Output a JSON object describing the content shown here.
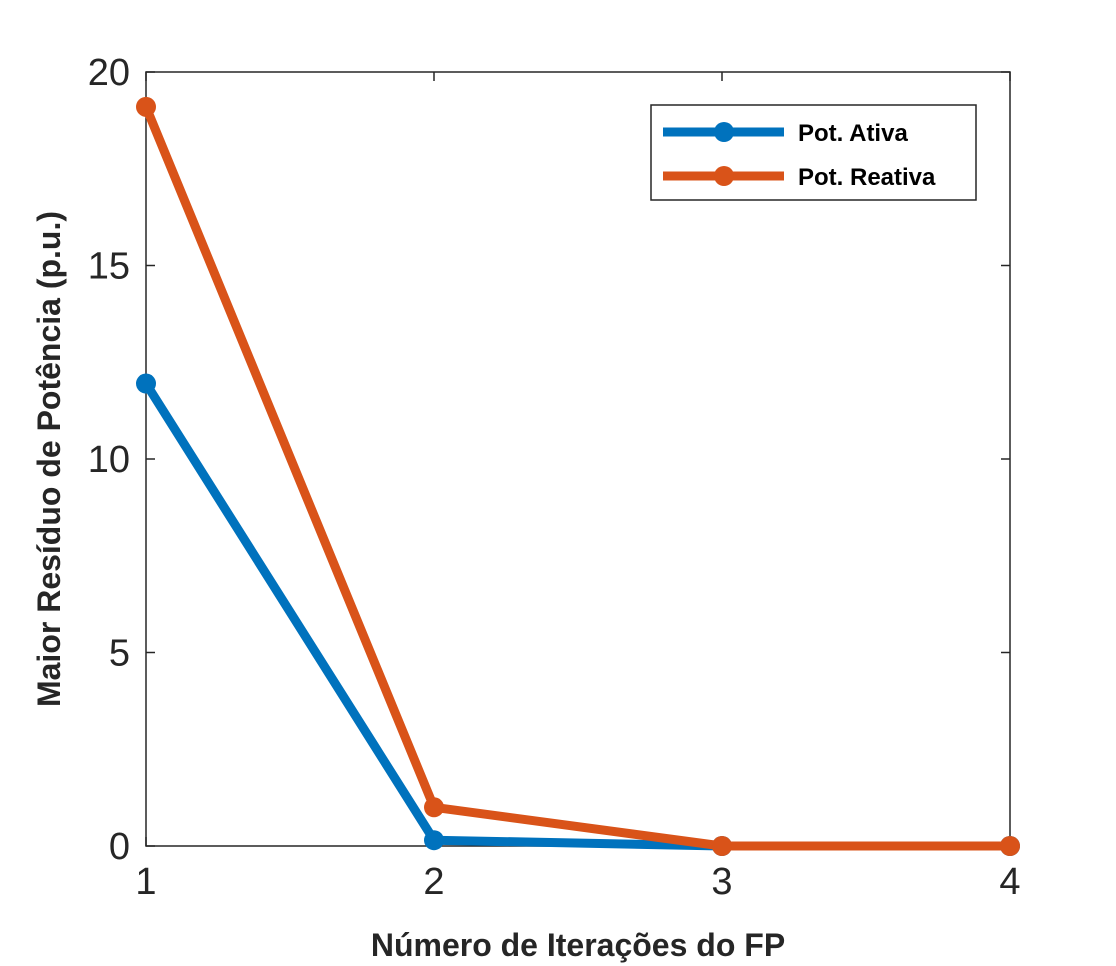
{
  "chart_data": {
    "type": "line",
    "xlabel": "Número de Iterações do FP",
    "ylabel": "Maior Resíduo de Potência (p.u.)",
    "xlim": [
      1,
      4
    ],
    "ylim": [
      0,
      20
    ],
    "xticks": [
      1,
      2,
      3,
      4
    ],
    "yticks": [
      0,
      5,
      10,
      15,
      20
    ],
    "grid": false,
    "legend_position": "top-right",
    "x": [
      1,
      2,
      3,
      4
    ],
    "series": [
      {
        "name": "Pot. Ativa",
        "color": "#0072BD",
        "values": [
          11.95,
          0.15,
          0.0,
          0.0
        ]
      },
      {
        "name": "Pot. Reativa",
        "color": "#D95319",
        "values": [
          19.1,
          1.0,
          0.0,
          0.0
        ]
      }
    ]
  }
}
